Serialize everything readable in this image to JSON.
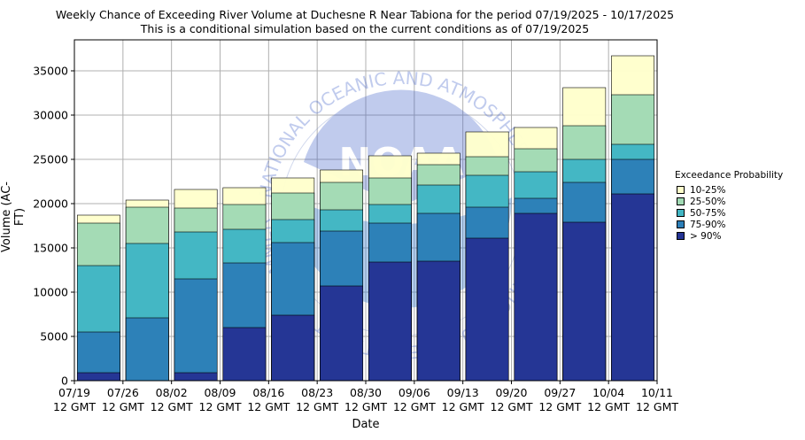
{
  "chart_data": {
    "type": "bar",
    "title": "Weekly Chance of Exceeding River Volume at Duchesne R Near Tabiona for the period 07/19/2025 - 10/17/2025",
    "subtitle": "This is a conditional simulation based on the current conditions as of 07/19/2025",
    "xlabel": "Date",
    "ylabel": "Volume (AC-FT)",
    "ylim": [
      0,
      38500
    ],
    "yticks": [
      0,
      5000,
      10000,
      15000,
      20000,
      25000,
      30000,
      35000
    ],
    "grid": true,
    "x_tick_labels": [
      [
        "07/19",
        "12 GMT"
      ],
      [
        "07/26",
        "12 GMT"
      ],
      [
        "08/02",
        "12 GMT"
      ],
      [
        "08/09",
        "12 GMT"
      ],
      [
        "08/16",
        "12 GMT"
      ],
      [
        "08/23",
        "12 GMT"
      ],
      [
        "08/30",
        "12 GMT"
      ],
      [
        "09/06",
        "12 GMT"
      ],
      [
        "09/13",
        "12 GMT"
      ],
      [
        "09/20",
        "12 GMT"
      ],
      [
        "09/27",
        "12 GMT"
      ],
      [
        "10/04",
        "12 GMT"
      ],
      [
        "10/11",
        "12 GMT"
      ]
    ],
    "legend": {
      "title": "Exceedance Probability",
      "placement": "right"
    },
    "series": [
      {
        "name": "10-25%",
        "color": "#ffffcc",
        "values": [
          18700,
          20400,
          21600,
          21800,
          22900,
          23800,
          25400,
          25700,
          28100,
          28600,
          33100,
          36700
        ]
      },
      {
        "name": "25-50%",
        "color": "#a1dab4",
        "values": [
          17800,
          19600,
          19500,
          19900,
          21200,
          22400,
          22900,
          24400,
          25300,
          26200,
          28800,
          32300
        ]
      },
      {
        "name": "50-75%",
        "color": "#41b6c4",
        "values": [
          13000,
          15500,
          16800,
          17100,
          18200,
          19300,
          19900,
          22100,
          23200,
          23600,
          25000,
          26700
        ]
      },
      {
        "name": "75-90%",
        "color": "#2c7fb8",
        "values": [
          5500,
          7100,
          11500,
          13300,
          15600,
          16900,
          17800,
          18900,
          19600,
          20600,
          22400,
          25000
        ]
      },
      {
        "name": "> 90%",
        "color": "#253494",
        "values": [
          900,
          0,
          900,
          6000,
          7400,
          10700,
          13400,
          13500,
          16100,
          18900,
          17900,
          21100
        ]
      }
    ]
  },
  "watermark": {
    "text": "NOAA",
    "ring_text": "NATIONAL OCEANIC AND ATMOSPHERIC ADMINISTRATION · U.S. DEPARTMENT OF COMMERCE"
  }
}
